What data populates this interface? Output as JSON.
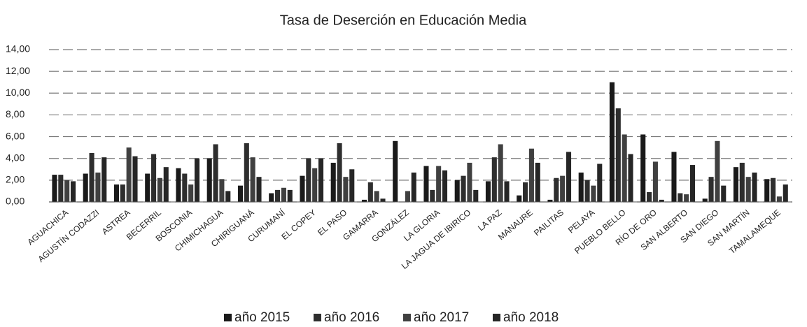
{
  "chart_data": {
    "type": "bar",
    "title": "Tasa de Deserción en Educación Media",
    "categories": [
      "AGUACHICA",
      "AGUSTÍN CODAZZI",
      "ASTREA",
      "BECERRIL",
      "BOSCONIA",
      "CHIMICHAGUA",
      "CHIRIGUANÁ",
      "CURUMANÍ",
      "EL COPEY",
      "EL PASO",
      "GAMARRA",
      "GONZÁLEZ",
      "LA GLORIA",
      "LA JAGUA DE IBIRICO",
      "LA PAZ",
      "MANAURE",
      "PAILITAS",
      "PELAYA",
      "PUEBLO BELLO",
      "RÍO DE ORO",
      "SAN ALBERTO",
      "SAN DIEGO",
      "SAN MARTÍN",
      "TAMALAMEQUE"
    ],
    "series": [
      {
        "name": "año 2015",
        "color": "#1a1a1a",
        "values": [
          2.5,
          2.6,
          1.6,
          2.6,
          3.1,
          4.0,
          1.5,
          0.8,
          2.4,
          3.6,
          0.2,
          5.6,
          3.3,
          2.0,
          1.9,
          0.6,
          0.2,
          2.7,
          11.0,
          6.2,
          4.6,
          0.3,
          3.2,
          2.1
        ]
      },
      {
        "name": "año 2016",
        "color": "#2e2e2e",
        "values": [
          2.5,
          4.5,
          1.6,
          4.4,
          2.6,
          5.3,
          5.4,
          1.1,
          4.0,
          5.4,
          1.8,
          0.0,
          1.1,
          2.4,
          4.1,
          1.8,
          2.2,
          2.0,
          8.6,
          0.9,
          0.8,
          2.3,
          3.6,
          2.2
        ]
      },
      {
        "name": "año 2017",
        "color": "#404040",
        "values": [
          2.0,
          2.7,
          5.0,
          2.2,
          1.6,
          2.1,
          4.1,
          1.3,
          3.1,
          2.3,
          1.0,
          1.0,
          3.3,
          3.6,
          5.3,
          4.9,
          2.4,
          1.5,
          6.2,
          3.7,
          0.7,
          5.6,
          2.3,
          0.5
        ]
      },
      {
        "name": "año 2018",
        "color": "#262626",
        "values": [
          1.9,
          4.1,
          4.2,
          3.2,
          4.0,
          1.0,
          2.3,
          1.1,
          4.0,
          3.0,
          0.3,
          2.7,
          2.9,
          1.1,
          1.9,
          3.6,
          4.6,
          3.5,
          4.4,
          0.2,
          3.4,
          1.5,
          2.7,
          1.6
        ]
      }
    ],
    "ylim": [
      0,
      14
    ],
    "yticks": [
      {
        "value": 0,
        "label": "0,00"
      },
      {
        "value": 2,
        "label": "2,00"
      },
      {
        "value": 4,
        "label": "4,00"
      },
      {
        "value": 6,
        "label": "6,00"
      },
      {
        "value": 8,
        "label": "8,00"
      },
      {
        "value": 10,
        "label": "10,00"
      },
      {
        "value": 12,
        "label": "12,00"
      },
      {
        "value": 14,
        "label": "14,00"
      }
    ],
    "grid": true,
    "legend": "bottom"
  }
}
